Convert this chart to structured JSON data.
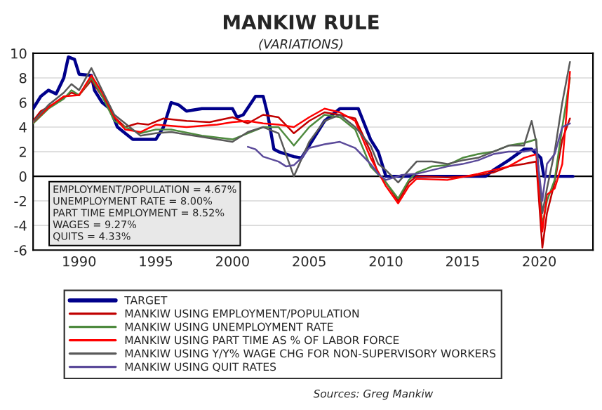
{
  "chart_data": {
    "type": "line",
    "title": "MANKIW RULE",
    "subtitle": "(VARIATIONS)",
    "xlim": [
      1987,
      2023.5
    ],
    "xticks": [
      1990,
      1995,
      2000,
      2005,
      2010,
      2015,
      2020
    ],
    "ylim": [
      -6,
      10
    ],
    "yticks": [
      -6,
      -4,
      -2,
      0,
      2,
      4,
      6,
      8,
      10
    ],
    "grid": "y",
    "legend": "bottom",
    "ref_lines": [
      {
        "axis": "y",
        "value": 0,
        "color": "#000000"
      }
    ],
    "annotations": [
      "EMPLOYMENT/POPULATION = 4.67%",
      "UNEMPLOYMENT RATE = 8.00%",
      "PART TIME EMPLOYMENT = 8.52%",
      "WAGES = 9.27%",
      "QUITS = 4.33%",
      "Sources: Greg Mankiw"
    ],
    "series": [
      {
        "name": "TARGET",
        "color": "#00008b",
        "x": [
          1987,
          1987.5,
          1988,
          1988.5,
          1989,
          1989.3,
          1989.7,
          1990,
          1990.8,
          1991,
          1991.5,
          1992,
          1992.5,
          1993,
          1993.5,
          1995,
          1995.5,
          1996,
          1996.5,
          1997,
          1998,
          2000,
          2000.3,
          2000.7,
          2001.5,
          2002,
          2002.3,
          2002.7,
          2003,
          2004,
          2004.5,
          2005,
          2006,
          2007,
          2008.2,
          2009,
          2009.5,
          2010,
          2016.5,
          2017,
          2018,
          2019,
          2019.5,
          2020.1,
          2020.3,
          2022.2
        ],
        "values": [
          5.5,
          6.5,
          7,
          6.7,
          8,
          9.7,
          9.5,
          8.3,
          8.2,
          7,
          6,
          5.5,
          4,
          3.5,
          3,
          3,
          4,
          6,
          5.8,
          5.3,
          5.5,
          5.5,
          4.8,
          5,
          6.5,
          6.5,
          5,
          2.2,
          2,
          1.6,
          1.5,
          2.5,
          4.5,
          5.5,
          5.5,
          3,
          2,
          0,
          0,
          0.5,
          1.3,
          2.2,
          2.2,
          1.5,
          0,
          0
        ]
      },
      {
        "name": "MANKIW USING EMPLOYMENT/POPULATION",
        "color": "#c00000",
        "x": [
          1987,
          1987.5,
          1988.5,
          1989.5,
          1990,
          1990.8,
          1991.5,
          1992.3,
          1993,
          1993.8,
          1994.5,
          1995.5,
          1997,
          1998.5,
          2000,
          2001,
          2002,
          2003,
          2004,
          2005,
          2006,
          2007,
          2008,
          2009,
          2009.5,
          2010,
          2010.8,
          2011.5,
          2012,
          2014,
          2015.5,
          2017,
          2018,
          2019,
          2019.8,
          2020.2,
          2020.5,
          2021,
          2021.5,
          2022
        ],
        "values": [
          4.5,
          5.3,
          6,
          6.8,
          6.6,
          7.8,
          6.5,
          4.8,
          4,
          4.3,
          4.2,
          4.7,
          4.5,
          4.4,
          4.8,
          4.3,
          5,
          4.8,
          3.5,
          4.5,
          5.2,
          5,
          4.7,
          2,
          0.2,
          -0.5,
          -2,
          -0.5,
          0,
          -0.1,
          0,
          0.3,
          0.8,
          1,
          1.2,
          -5.8,
          -3,
          -0.5,
          3,
          4.7
        ]
      },
      {
        "name": "MANKIW USING UNEMPLOYMENT RATE",
        "color": "#4e8a3e",
        "x": [
          1987,
          1988,
          1989,
          1989.5,
          1990,
          1990.8,
          1991.5,
          1992.3,
          1993,
          1994,
          1995,
          1996,
          1998,
          2000,
          2001,
          2002,
          2003,
          2004,
          2005,
          2006,
          2007,
          2008,
          2009,
          2010,
          2010.8,
          2011.5,
          2012,
          2013,
          2014,
          2015,
          2016,
          2017,
          2018,
          2019,
          2019.8,
          2020.2,
          2020.5,
          2021,
          2021.5,
          2022
        ],
        "values": [
          4.3,
          5.5,
          6.3,
          7,
          6.6,
          8,
          6.5,
          4.5,
          4,
          3.5,
          3.8,
          3.8,
          3.3,
          3,
          3.5,
          4,
          4,
          2.5,
          4,
          5,
          4.8,
          3.8,
          0.8,
          -0.5,
          -1.8,
          -0.3,
          0.3,
          0.8,
          0.9,
          1.5,
          1.8,
          2,
          2.5,
          2.7,
          3,
          -4,
          -2,
          -0.3,
          4,
          8.0
        ]
      },
      {
        "name": "MANKIW USING PART TIME AS % OF LABOR FORCE",
        "color": "#ff0000",
        "x": [
          1987,
          1988,
          1989,
          1990,
          1990.8,
          1991.5,
          1992.3,
          1993,
          1994,
          1995,
          1997,
          1999,
          2000,
          2001,
          2002,
          2003,
          2004,
          2005,
          2006,
          2007,
          2008,
          2009,
          2010,
          2010.8,
          2011.5,
          2012,
          2014,
          2016,
          2018,
          2019,
          2019.8,
          2020.2,
          2020.5,
          2021,
          2021.5,
          2022
        ],
        "values": [
          4.4,
          5.6,
          6.5,
          6.6,
          8.2,
          6.8,
          4.8,
          3.8,
          3.6,
          4.2,
          4,
          4.2,
          4.4,
          4.5,
          4.3,
          4.2,
          4,
          4.8,
          5.5,
          5.2,
          4.5,
          1.5,
          -0.8,
          -2.2,
          -0.8,
          -0.2,
          -0.3,
          0.2,
          0.8,
          1.5,
          1.8,
          -4.5,
          -1.5,
          -1,
          1,
          8.5
        ]
      },
      {
        "name": "MANKIW USING Y/Y% WAGE CHG FOR NON-SUPERVISORY WORKERS",
        "color": "#595959",
        "x": [
          1987,
          1988,
          1989,
          1989.5,
          1990,
          1990.8,
          1991.5,
          1992.3,
          1993,
          1994,
          1995,
          1996,
          1998,
          2000,
          2001,
          2002,
          2003,
          2004,
          2005,
          2006,
          2007,
          2008,
          2009,
          2009.5,
          2010,
          2010.8,
          2011.5,
          2012,
          2013,
          2014,
          2015,
          2016,
          2017,
          2018,
          2019,
          2019.5,
          2019.8,
          2020.2,
          2020.5,
          2021,
          2021.5,
          2022
        ],
        "values": [
          4.4,
          5.8,
          6.8,
          7.5,
          7,
          8.8,
          7,
          5,
          4.3,
          3.3,
          3.5,
          3.6,
          3.2,
          2.8,
          3.6,
          4,
          3.5,
          0,
          2.8,
          4.5,
          5,
          4,
          2.5,
          1,
          0.5,
          -0.5,
          0.5,
          1.2,
          1.2,
          1,
          1.3,
          1.5,
          2,
          2.5,
          2.5,
          4.5,
          2.8,
          -3,
          -1,
          2,
          6,
          9.3
        ]
      },
      {
        "name": "MANKIW USING QUIT RATES",
        "color": "#5b4a9a",
        "x": [
          2001,
          2001.5,
          2002,
          2003,
          2003.5,
          2004,
          2004.5,
          2005,
          2006,
          2007,
          2008,
          2009,
          2009.5,
          2010,
          2011,
          2012,
          2013,
          2014,
          2015,
          2016,
          2017,
          2018,
          2019,
          2019.8,
          2020.2,
          2020.5,
          2021,
          2021.5,
          2022
        ],
        "values": [
          2.4,
          2.2,
          1.6,
          1.2,
          0.8,
          0.9,
          1.5,
          2.3,
          2.6,
          2.8,
          2.3,
          1,
          0.2,
          -0.3,
          0.1,
          0.2,
          0.5,
          0.8,
          1,
          1.3,
          1.8,
          2,
          2,
          2.2,
          -2,
          1,
          1.8,
          4,
          4.3
        ]
      }
    ]
  }
}
